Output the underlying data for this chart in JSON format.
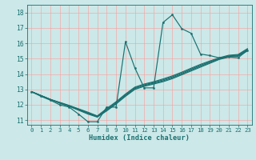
{
  "xlabel": "Humidex (Indice chaleur)",
  "bg_color": "#cce8e8",
  "grid_color": "#ff9999",
  "line_color": "#1a7070",
  "xlim": [
    -0.5,
    23.5
  ],
  "ylim": [
    10.7,
    18.5
  ],
  "xticks": [
    0,
    1,
    2,
    3,
    4,
    5,
    6,
    7,
    8,
    9,
    10,
    11,
    12,
    13,
    14,
    15,
    16,
    17,
    18,
    19,
    20,
    21,
    22,
    23
  ],
  "yticks": [
    11,
    12,
    13,
    14,
    15,
    16,
    17,
    18
  ],
  "spiky_x": [
    0,
    1,
    2,
    3,
    4,
    5,
    6,
    7,
    8,
    9,
    10,
    11,
    12,
    13,
    14,
    15,
    16,
    17,
    18,
    19,
    20,
    21,
    22,
    23
  ],
  "spiky_y": [
    12.85,
    12.55,
    12.3,
    12.0,
    11.85,
    11.4,
    10.9,
    10.9,
    11.85,
    11.85,
    16.1,
    14.4,
    13.1,
    13.1,
    17.35,
    17.85,
    16.95,
    16.65,
    15.3,
    15.2,
    15.05,
    15.1,
    15.05,
    15.55
  ],
  "linear_lines": [
    [
      12.85,
      12.6,
      12.35,
      12.1,
      11.9,
      11.65,
      11.4,
      11.2,
      11.6,
      12.05,
      12.55,
      13.0,
      13.2,
      13.35,
      13.5,
      13.7,
      13.95,
      14.2,
      14.45,
      14.7,
      14.95,
      15.1,
      15.15,
      15.5
    ],
    [
      12.85,
      12.6,
      12.35,
      12.12,
      11.92,
      11.68,
      11.44,
      11.22,
      11.65,
      12.1,
      12.6,
      13.05,
      13.25,
      13.4,
      13.56,
      13.76,
      14.0,
      14.26,
      14.51,
      14.75,
      14.98,
      15.14,
      15.19,
      15.55
    ],
    [
      12.85,
      12.6,
      12.35,
      12.14,
      11.94,
      11.71,
      11.48,
      11.25,
      11.7,
      12.15,
      12.65,
      13.1,
      13.3,
      13.45,
      13.62,
      13.82,
      14.06,
      14.32,
      14.57,
      14.8,
      15.02,
      15.18,
      15.23,
      15.6
    ],
    [
      12.85,
      12.6,
      12.35,
      12.16,
      11.96,
      11.74,
      11.52,
      11.28,
      11.75,
      12.2,
      12.7,
      13.15,
      13.35,
      13.5,
      13.68,
      13.88,
      14.12,
      14.38,
      14.63,
      14.85,
      15.06,
      15.22,
      15.27,
      15.65
    ]
  ]
}
